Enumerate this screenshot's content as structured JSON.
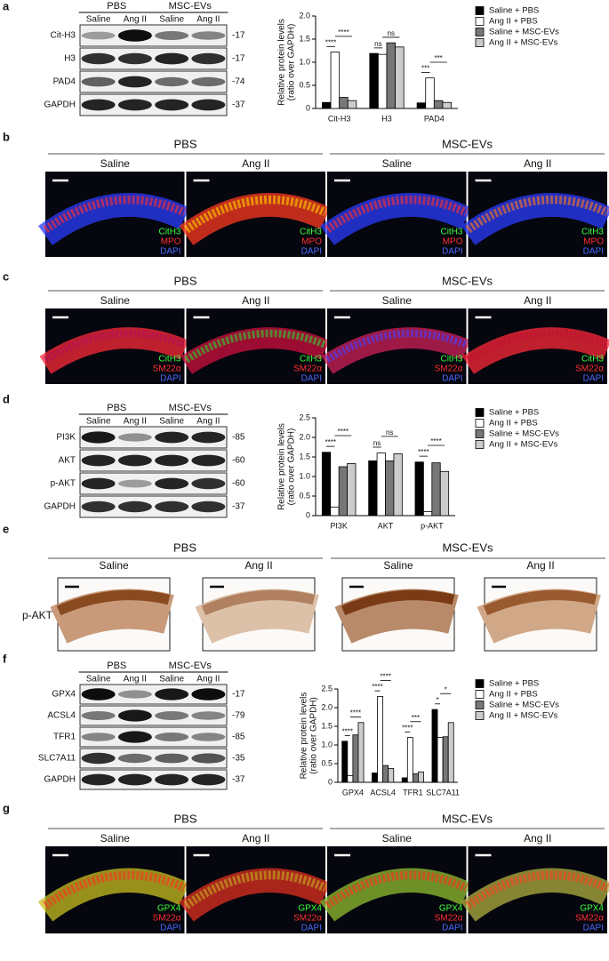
{
  "panels": [
    {
      "letter": "a",
      "groups": [
        "PBS",
        "MSC-EVs"
      ],
      "lanes": [
        "Saline",
        "Ang II",
        "Saline",
        "Ang II"
      ],
      "rows": [
        "Cit-H3",
        "H3",
        "PAD4",
        "GAPDH"
      ],
      "weights": [
        "-17",
        "-17",
        "-74",
        "-37"
      ]
    },
    {
      "letter": "b",
      "groups": [
        "PBS",
        "MSC-EVs"
      ],
      "lanes": [
        "Saline",
        "Ang II",
        "Saline",
        "Ang II"
      ],
      "stains": [
        "CitH3",
        "MPO",
        "DAPI"
      ]
    },
    {
      "letter": "c",
      "groups": [
        "PBS",
        "MSC-EVs"
      ],
      "lanes": [
        "Saline",
        "Ang II",
        "Saline",
        "Ang II"
      ],
      "stains": [
        "CitH3",
        "SM22α",
        "DAPI"
      ]
    },
    {
      "letter": "d",
      "groups": [
        "PBS",
        "MSC-EVs"
      ],
      "lanes": [
        "Saline",
        "Ang II",
        "Saline",
        "Ang II"
      ],
      "rows": [
        "PI3K",
        "AKT",
        "p-AKT",
        "GAPDH"
      ],
      "weights": [
        "-85",
        "-60",
        "-60",
        "-37"
      ]
    },
    {
      "letter": "e",
      "groups": [
        "PBS",
        "MSC-EVs"
      ],
      "lanes": [
        "Saline",
        "Ang II",
        "Saline",
        "Ang II"
      ],
      "row_label": "p-AKT"
    },
    {
      "letter": "f",
      "groups": [
        "PBS",
        "MSC-EVs"
      ],
      "lanes": [
        "Saline",
        "Ang II",
        "Saline",
        "Ang II"
      ],
      "rows": [
        "GPX4",
        "ACSL4",
        "TFR1",
        "SLC7A11",
        "GAPDH"
      ],
      "weights": [
        "-17",
        "-79",
        "-85",
        "-35",
        "-37"
      ]
    },
    {
      "letter": "g",
      "groups": [
        "PBS",
        "MSC-EVs"
      ],
      "lanes": [
        "Saline",
        "Ang II",
        "Saline",
        "Ang II"
      ],
      "stains": [
        "GPX4",
        "SM22α",
        "DAPI"
      ]
    }
  ],
  "chart_data": [
    {
      "type": "bar",
      "y_label": [
        "Relative protein levels",
        "(ratio over GAPDH)"
      ],
      "categories": [
        "Cit-H3",
        "H3",
        "PAD4"
      ],
      "series": [
        {
          "name": "Saline + PBS",
          "color": "#000000",
          "values": [
            0.13,
            1.19,
            0.12
          ]
        },
        {
          "name": "Ang II + PBS",
          "color": "#ffffff",
          "values": [
            1.22,
            1.17,
            0.66
          ]
        },
        {
          "name": "Saline + MSC-EVs",
          "color": "#777777",
          "values": [
            0.24,
            1.42,
            0.17
          ]
        },
        {
          "name": "Ang II + MSC-EVs",
          "color": "#cccccc",
          "values": [
            0.17,
            1.33,
            0.13
          ]
        }
      ],
      "ylim": [
        0,
        2
      ],
      "yticks": [
        0,
        0.5,
        {
          "value": 1,
          "label": "1.0"
        },
        1.5,
        {
          "value": 2,
          "label": "2.0"
        }
      ],
      "annotations": [
        "****",
        "****",
        "ns",
        "ns",
        "***",
        "***"
      ]
    },
    {
      "type": "bar",
      "y_label": [
        "Relative protein levels",
        "(ratio over GAPDH)"
      ],
      "categories": [
        "PI3K",
        "AKT",
        "p-AKT"
      ],
      "series": [
        {
          "name": "Saline + PBS",
          "color": "#000000",
          "values": [
            1.62,
            1.4,
            1.37
          ]
        },
        {
          "name": "Ang II + PBS",
          "color": "#ffffff",
          "values": [
            0.22,
            1.6,
            0.1
          ]
        },
        {
          "name": "Saline + MSC-EVs",
          "color": "#777777",
          "values": [
            1.25,
            1.4,
            1.35
          ]
        },
        {
          "name": "Ang II + MSC-EVs",
          "color": "#cccccc",
          "values": [
            1.33,
            1.58,
            1.13
          ]
        }
      ],
      "ylim": [
        0,
        2.5
      ],
      "yticks": [
        0,
        0.5,
        {
          "value": 1,
          "label": "1.0"
        },
        1.5,
        {
          "value": 2,
          "label": "2.0"
        },
        2.5
      ],
      "annotations": [
        "****",
        "****",
        "ns",
        "ns",
        "****",
        "****"
      ]
    },
    {
      "type": "bar",
      "y_label": [
        "Relative protein levels",
        "(ratio over GAPDH)"
      ],
      "categories": [
        "GPX4",
        "ACSL4",
        "TFR1",
        "SLC7A11"
      ],
      "series": [
        {
          "name": "Saline + PBS",
          "color": "#000000",
          "values": [
            1.1,
            0.25,
            0.12,
            1.95
          ]
        },
        {
          "name": "Ang II + PBS",
          "color": "#ffffff",
          "values": [
            0.18,
            2.3,
            1.2,
            1.2
          ]
        },
        {
          "name": "Saline + MSC-EVs",
          "color": "#777777",
          "values": [
            1.27,
            0.45,
            0.23,
            1.22
          ]
        },
        {
          "name": "Ang II + MSC-EVs",
          "color": "#cccccc",
          "values": [
            1.6,
            0.37,
            0.28,
            1.6
          ]
        }
      ],
      "ylim": [
        0,
        2.5
      ],
      "yticks": [
        0,
        0.5,
        {
          "value": 1,
          "label": "1.0"
        },
        1.5,
        {
          "value": 2,
          "label": "2.0"
        },
        2.5
      ],
      "annotations": [
        "****",
        "****",
        "****",
        "****",
        "****",
        "***",
        "*",
        "*"
      ]
    }
  ]
}
